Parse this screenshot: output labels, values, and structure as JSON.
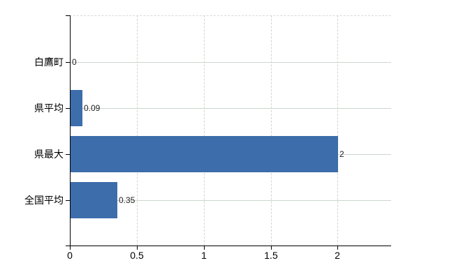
{
  "chart_data": {
    "type": "bar",
    "orientation": "horizontal",
    "title": "",
    "categories": [
      "白鷹町",
      "県平均",
      "県最大",
      "全国平均"
    ],
    "values": [
      0,
      0.09,
      2,
      0.35
    ],
    "value_labels": [
      "0",
      "0.09",
      "2",
      "0.35"
    ],
    "xlim": [
      0,
      2.4
    ],
    "x_ticks": [
      0,
      0.5,
      1,
      1.5,
      2
    ],
    "x_tick_labels": [
      "0",
      "0.5",
      "1",
      "1.5",
      "2"
    ],
    "grid": "on",
    "legend": "none",
    "colors": {
      "bar": "#3d6dab",
      "grid": "#cdd7cd",
      "axis": "#000000",
      "plot_top_border": "#d9d9d9",
      "background": "#ffffff",
      "category_label": "#000000",
      "value_label": "#222222",
      "tick_label": "#000000"
    }
  }
}
